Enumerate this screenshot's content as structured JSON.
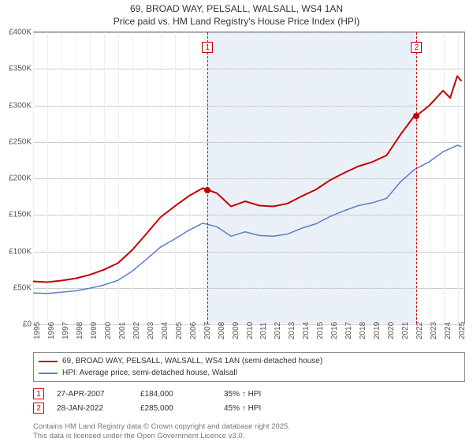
{
  "title": {
    "line1": "69, BROAD WAY, PELSALL, WALSALL, WS4 1AN",
    "line2": "Price paid vs. HM Land Registry's House Price Index (HPI)"
  },
  "chart": {
    "type": "line",
    "background_color": "#ffffff",
    "grid_color_y": "#cccccc",
    "grid_color_x": "#eeeeee",
    "axis_color": "#777777",
    "shade_color": "#eaf0f8",
    "shade_range": [
      2007.32,
      2022.07
    ],
    "xlim": [
      1995,
      2025.5
    ],
    "ylim": [
      0,
      400000
    ],
    "yticks": [
      0,
      50000,
      100000,
      150000,
      200000,
      250000,
      300000,
      350000,
      400000
    ],
    "ytick_labels": [
      "£0",
      "£50K",
      "£100K",
      "£150K",
      "£200K",
      "£250K",
      "£300K",
      "£350K",
      "£400K"
    ],
    "xticks": [
      1995,
      1996,
      1997,
      1998,
      1999,
      2000,
      2001,
      2002,
      2003,
      2004,
      2005,
      2006,
      2007,
      2008,
      2009,
      2010,
      2011,
      2012,
      2013,
      2014,
      2015,
      2016,
      2017,
      2018,
      2019,
      2020,
      2021,
      2022,
      2023,
      2024,
      2025
    ],
    "series": [
      {
        "name": "property",
        "label": "69, BROAD WAY, PELSALL, WALSALL, WS4 1AN (semi-detached house)",
        "color": "#c40000",
        "line_width": 2,
        "data": [
          [
            1995,
            58000
          ],
          [
            1996,
            57000
          ],
          [
            1997,
            59000
          ],
          [
            1998,
            62000
          ],
          [
            1999,
            67000
          ],
          [
            2000,
            74000
          ],
          [
            2001,
            83000
          ],
          [
            2002,
            101000
          ],
          [
            2003,
            123000
          ],
          [
            2004,
            146000
          ],
          [
            2005,
            161000
          ],
          [
            2006,
            175000
          ],
          [
            2007,
            186000
          ],
          [
            2007.32,
            184000
          ],
          [
            2008,
            179000
          ],
          [
            2009,
            161000
          ],
          [
            2010,
            168000
          ],
          [
            2011,
            162000
          ],
          [
            2012,
            161000
          ],
          [
            2013,
            165000
          ],
          [
            2014,
            175000
          ],
          [
            2015,
            184000
          ],
          [
            2016,
            197000
          ],
          [
            2017,
            207000
          ],
          [
            2018,
            216000
          ],
          [
            2019,
            222000
          ],
          [
            2020,
            231000
          ],
          [
            2021,
            260000
          ],
          [
            2022,
            286000
          ],
          [
            2022.07,
            285000
          ],
          [
            2023,
            299000
          ],
          [
            2024,
            320000
          ],
          [
            2024.5,
            310000
          ],
          [
            2025,
            340000
          ],
          [
            2025.3,
            333000
          ]
        ]
      },
      {
        "name": "hpi",
        "label": "HPI: Average price, semi-detached house, Walsall",
        "color": "#5a7fc4",
        "line_width": 1.5,
        "data": [
          [
            1995,
            42000
          ],
          [
            1996,
            41500
          ],
          [
            1997,
            43000
          ],
          [
            1998,
            45000
          ],
          [
            1999,
            48500
          ],
          [
            2000,
            53000
          ],
          [
            2001,
            59500
          ],
          [
            2002,
            72000
          ],
          [
            2003,
            88000
          ],
          [
            2004,
            105000
          ],
          [
            2005,
            116000
          ],
          [
            2006,
            128000
          ],
          [
            2007,
            138000
          ],
          [
            2008,
            133000
          ],
          [
            2009,
            120000
          ],
          [
            2010,
            126000
          ],
          [
            2011,
            121000
          ],
          [
            2012,
            120000
          ],
          [
            2013,
            123000
          ],
          [
            2014,
            131000
          ],
          [
            2015,
            137000
          ],
          [
            2016,
            147000
          ],
          [
            2017,
            155000
          ],
          [
            2018,
            162000
          ],
          [
            2019,
            166000
          ],
          [
            2020,
            172000
          ],
          [
            2021,
            195000
          ],
          [
            2022,
            212000
          ],
          [
            2023,
            222000
          ],
          [
            2024,
            236000
          ],
          [
            2025,
            245000
          ],
          [
            2025.3,
            243000
          ]
        ]
      }
    ],
    "sale_markers": [
      {
        "n": "1",
        "x": 2007.32,
        "y": 184000,
        "color": "#c40000"
      },
      {
        "n": "2",
        "x": 2022.07,
        "y": 285000,
        "color": "#c40000"
      }
    ]
  },
  "legend": {
    "rows": [
      {
        "color": "#c40000",
        "label": "69, BROAD WAY, PELSALL, WALSALL, WS4 1AN (semi-detached house)"
      },
      {
        "color": "#5a7fc4",
        "label": "HPI: Average price, semi-detached house, Walsall"
      }
    ]
  },
  "sales": [
    {
      "n": "1",
      "date": "27-APR-2007",
      "price": "£184,000",
      "delta": "35% ↑ HPI"
    },
    {
      "n": "2",
      "date": "28-JAN-2022",
      "price": "£285,000",
      "delta": "45% ↑ HPI"
    }
  ],
  "footer": {
    "line1": "Contains HM Land Registry data © Crown copyright and database right 2025.",
    "line2": "This data is licensed under the Open Government Licence v3.0."
  }
}
